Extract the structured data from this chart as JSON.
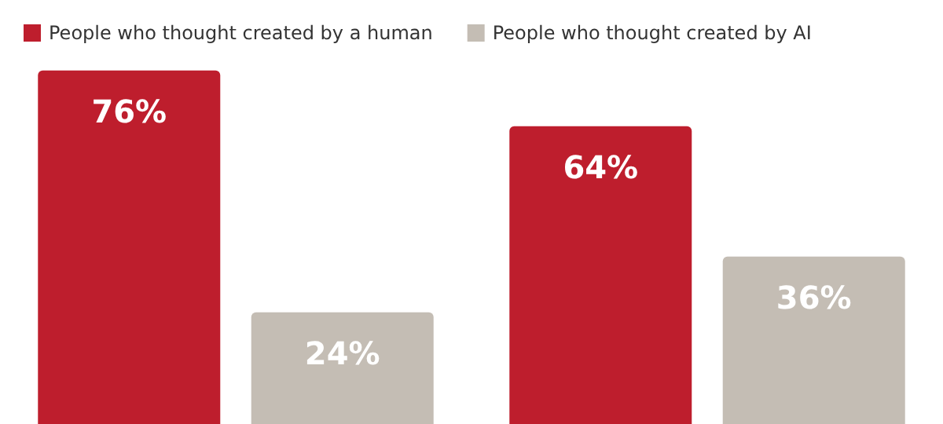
{
  "chart_data": {
    "type": "bar",
    "categories": [
      null,
      null
    ],
    "series": [
      {
        "name": "People who thought created by a human",
        "color": "#be1e2d",
        "values": [
          76,
          64
        ],
        "value_labels": [
          "76%",
          "64%"
        ]
      },
      {
        "name": "People who thought created by AI",
        "color": "#c4bdb4",
        "values": [
          24,
          36
        ],
        "value_labels": [
          "24%",
          "36%"
        ]
      }
    ],
    "legend": "top left"
  }
}
